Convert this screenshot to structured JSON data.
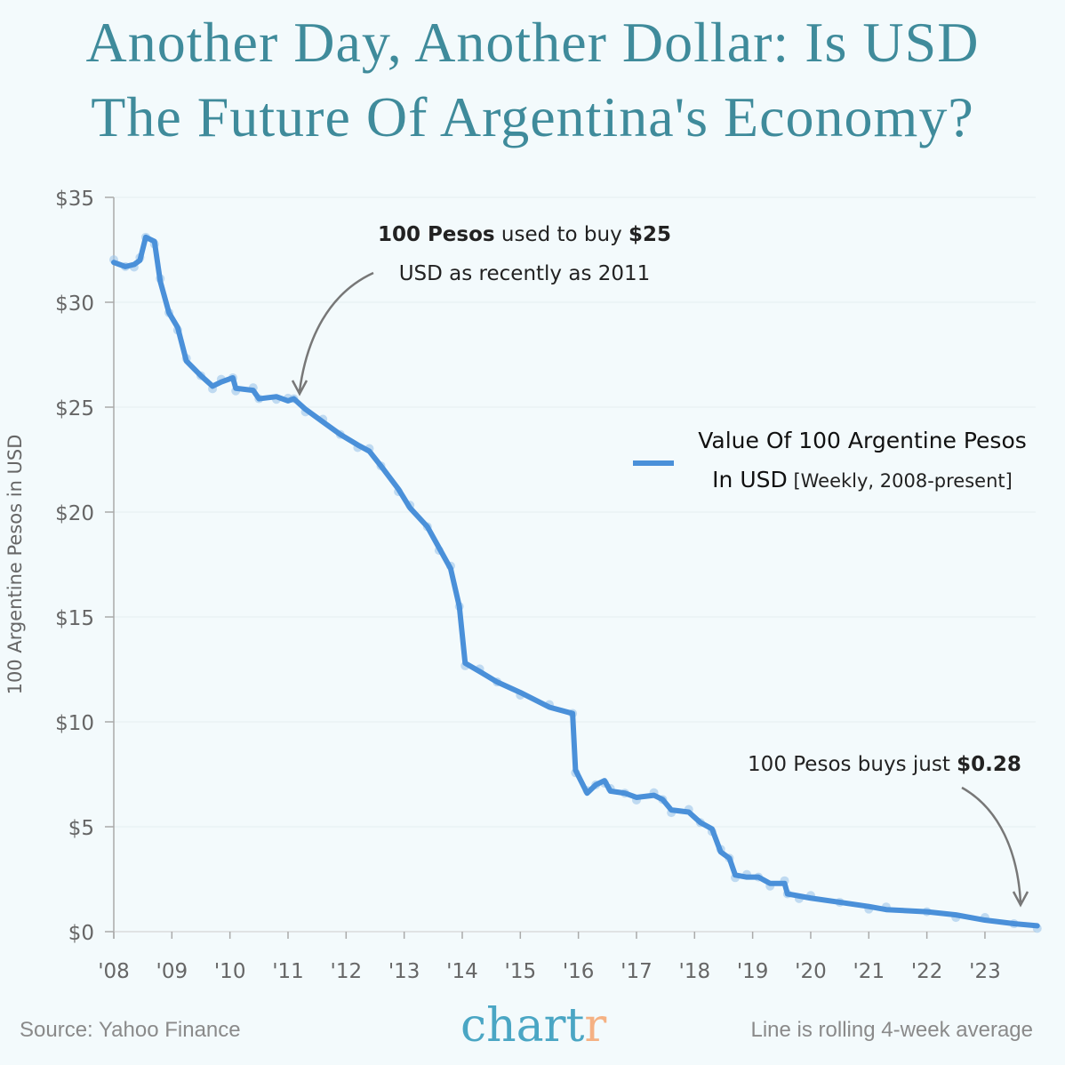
{
  "title": {
    "line1": "Another Day, Another Dollar: Is USD",
    "line2": "The Future Of Argentina's Economy?",
    "color": "#3f8b9b"
  },
  "annotations": {
    "top": {
      "bold1": "100 Pesos",
      "text1": " used to buy ",
      "bold2": "$25",
      "line2": "USD as recently as 2011"
    },
    "bottom": {
      "text": "100 Pesos buys just ",
      "bold": "$0.28"
    }
  },
  "legend": {
    "bold": "Value Of 100 Argentine Pesos",
    "bold2": "In USD",
    "note": " [Weekly, 2008-present]"
  },
  "footer": {
    "source": "Source: Yahoo Finance",
    "note": "Line is rolling 4-week average",
    "logo_main": "chart",
    "logo_accent": "r"
  },
  "colors": {
    "line": "#4a90d9",
    "dots": "#9cc4ea",
    "logo": "#4aa6c4",
    "logo_accent": "#f5b183"
  },
  "chart_data": {
    "type": "line",
    "ylabel": "100 Argentine Pesos in USD",
    "ylim": [
      0,
      35
    ],
    "yticks": [
      "$0",
      "$5",
      "$10",
      "$15",
      "$20",
      "$25",
      "$30",
      "$35"
    ],
    "yvalues": [
      0,
      5,
      10,
      15,
      20,
      25,
      30,
      35
    ],
    "xticks": [
      "'08",
      "'09",
      "'10",
      "'11",
      "'12",
      "'13",
      "'14",
      "'15",
      "'16",
      "'17",
      "'18",
      "'19",
      "'20",
      "'21",
      "'22",
      "'23"
    ],
    "xlim": [
      2008,
      2024
    ],
    "grid": "horizontal",
    "legend_position": "right",
    "series": [
      {
        "name": "Value Of 100 Argentine Pesos In USD",
        "x": [
          2008.0,
          2008.2,
          2008.35,
          2008.45,
          2008.55,
          2008.7,
          2008.8,
          2008.95,
          2009.1,
          2009.25,
          2009.5,
          2009.7,
          2009.85,
          2010.05,
          2010.1,
          2010.4,
          2010.5,
          2010.8,
          2011.0,
          2011.1,
          2011.3,
          2011.6,
          2011.9,
          2012.2,
          2012.4,
          2012.6,
          2012.9,
          2013.1,
          2013.4,
          2013.6,
          2013.8,
          2013.95,
          2014.05,
          2014.3,
          2014.6,
          2015.0,
          2015.5,
          2015.9,
          2015.95,
          2016.15,
          2016.3,
          2016.45,
          2016.55,
          2016.8,
          2017.0,
          2017.3,
          2017.45,
          2017.6,
          2017.9,
          2018.1,
          2018.3,
          2018.45,
          2018.6,
          2018.7,
          2018.9,
          2019.1,
          2019.3,
          2019.55,
          2019.6,
          2019.8,
          2020.0,
          2020.5,
          2021.0,
          2021.3,
          2022.0,
          2022.5,
          2023.0,
          2023.5,
          2023.9
        ],
        "y": [
          31.9,
          31.7,
          31.8,
          32.0,
          33.1,
          32.9,
          31.0,
          29.5,
          28.8,
          27.2,
          26.5,
          26.0,
          26.2,
          26.4,
          25.9,
          25.8,
          25.4,
          25.5,
          25.3,
          25.4,
          24.9,
          24.3,
          23.7,
          23.2,
          22.9,
          22.2,
          21.1,
          20.2,
          19.3,
          18.3,
          17.3,
          15.5,
          12.8,
          12.4,
          11.9,
          11.4,
          10.7,
          10.4,
          7.7,
          6.6,
          7.0,
          7.2,
          6.7,
          6.6,
          6.4,
          6.5,
          6.3,
          5.8,
          5.7,
          5.2,
          4.9,
          3.8,
          3.5,
          2.7,
          2.6,
          2.6,
          2.3,
          2.3,
          1.8,
          1.7,
          1.6,
          1.4,
          1.2,
          1.05,
          0.95,
          0.8,
          0.55,
          0.38,
          0.28
        ]
      }
    ]
  }
}
